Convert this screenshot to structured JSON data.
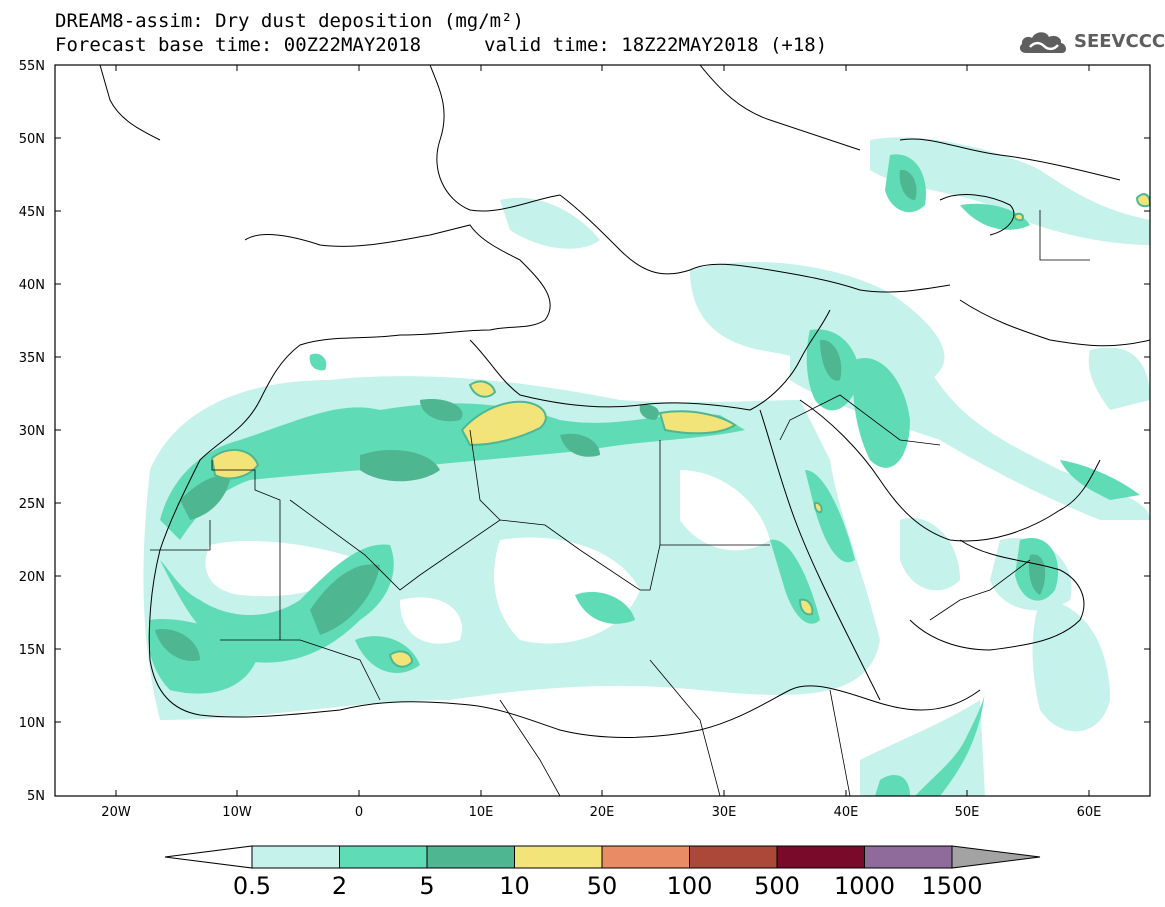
{
  "header": {
    "title": "DREAM8-assim: Dry dust deposition (mg/m²)",
    "base_time": "Forecast base time: 00Z22MAY2018",
    "valid_time": "valid time: 18Z22MAY2018 (+18)",
    "brand": "SEEVCCC",
    "brand_icon": "cloud-logo-icon"
  },
  "axes": {
    "lat_labels": [
      "55N",
      "50N",
      "45N",
      "40N",
      "35N",
      "30N",
      "25N",
      "20N",
      "15N",
      "10N",
      "5N"
    ],
    "lon_labels": [
      "20W",
      "10W",
      "0",
      "10E",
      "20E",
      "30E",
      "40E",
      "50E",
      "60E"
    ]
  },
  "colorbar": {
    "labels": [
      "0.5",
      "2",
      "5",
      "10",
      "50",
      "100",
      "500",
      "1000",
      "1500"
    ],
    "colors": [
      "#c5f2ea",
      "#5fdcb6",
      "#4fb692",
      "#f3e47a",
      "#e98b65",
      "#ab4839",
      "#7a0a2a",
      "#8f6b9c",
      "#a3a3a3"
    ]
  }
}
